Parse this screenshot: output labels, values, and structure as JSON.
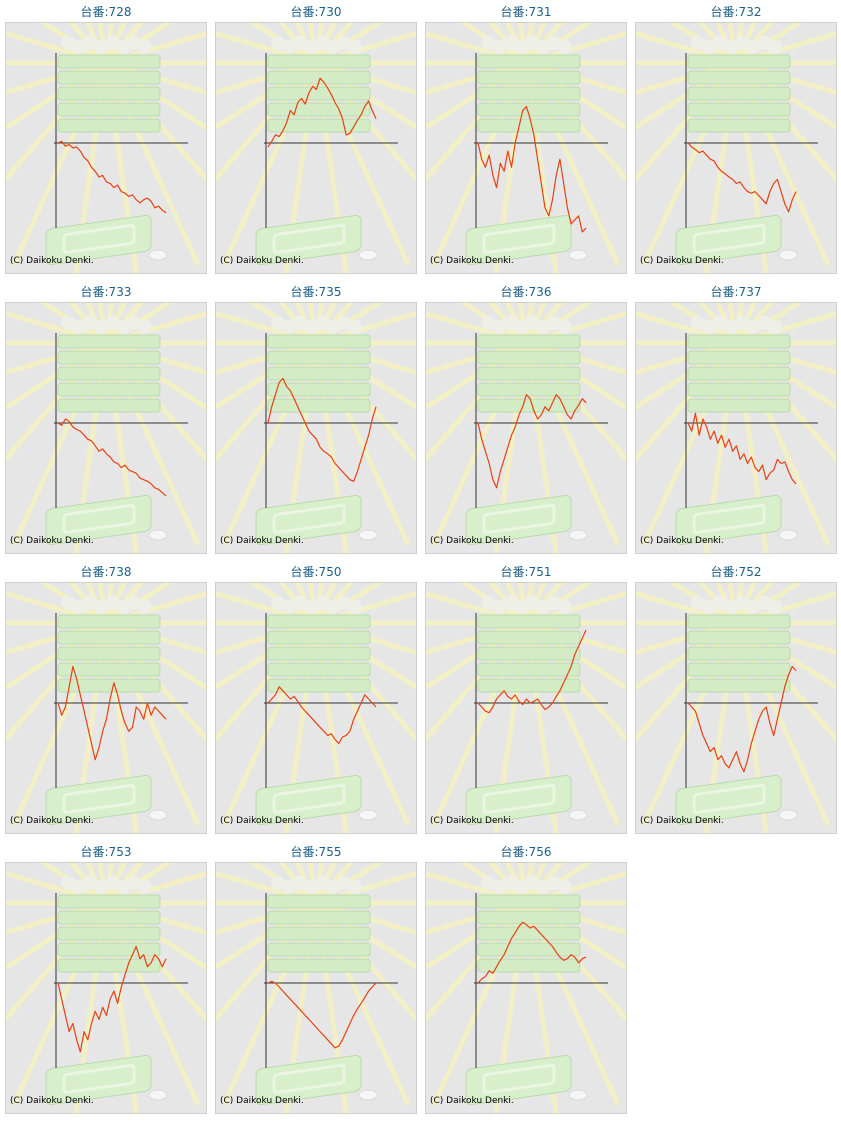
{
  "copyright": "(C) Daikoku Denki.",
  "line_color": "#e8410f",
  "axis_color": "#333333",
  "chart_data": [
    {
      "type": "line",
      "title": "台番:728",
      "ylim": [
        -1,
        1
      ],
      "x": [
        0,
        1,
        2,
        3,
        4,
        5,
        6,
        7,
        8,
        9,
        10,
        11,
        12,
        13,
        14,
        15,
        16,
        17,
        18,
        19,
        20,
        21,
        22,
        23,
        24,
        25,
        26,
        27,
        28,
        29
      ],
      "values": [
        0,
        0.02,
        -0.04,
        -0.02,
        -0.06,
        -0.05,
        -0.1,
        -0.18,
        -0.22,
        -0.3,
        -0.35,
        -0.42,
        -0.4,
        -0.48,
        -0.5,
        -0.55,
        -0.52,
        -0.6,
        -0.62,
        -0.66,
        -0.64,
        -0.7,
        -0.74,
        -0.7,
        -0.68,
        -0.72,
        -0.8,
        -0.78,
        -0.83,
        -0.86
      ]
    },
    {
      "type": "line",
      "title": "台番:730",
      "ylim": [
        -1,
        1
      ],
      "x": [
        0,
        1,
        2,
        3,
        4,
        5,
        6,
        7,
        8,
        9,
        10,
        11,
        12,
        13,
        14,
        15,
        16,
        17,
        18,
        19,
        20,
        21,
        22,
        23,
        24,
        25,
        26,
        27,
        28,
        29
      ],
      "values": [
        -0.05,
        0.02,
        0.1,
        0.08,
        0.15,
        0.25,
        0.4,
        0.35,
        0.5,
        0.55,
        0.48,
        0.62,
        0.7,
        0.66,
        0.8,
        0.75,
        0.68,
        0.6,
        0.5,
        0.42,
        0.3,
        0.1,
        0.12,
        0.2,
        0.28,
        0.35,
        0.45,
        0.52,
        0.4,
        0.3
      ]
    },
    {
      "type": "line",
      "title": "台番:731",
      "ylim": [
        -1,
        1
      ],
      "x": [
        0,
        1,
        2,
        3,
        4,
        5,
        6,
        7,
        8,
        9,
        10,
        11,
        12,
        13,
        14,
        15,
        16,
        17,
        18,
        19,
        20,
        21,
        22,
        23,
        24,
        25,
        26,
        27,
        28,
        29
      ],
      "values": [
        0,
        -0.2,
        -0.3,
        -0.15,
        -0.4,
        -0.55,
        -0.25,
        -0.35,
        -0.1,
        -0.3,
        0.0,
        0.2,
        0.4,
        0.45,
        0.3,
        0.1,
        -0.2,
        -0.5,
        -0.8,
        -0.9,
        -0.7,
        -0.4,
        -0.2,
        -0.5,
        -0.8,
        -1.0,
        -0.95,
        -0.9,
        -1.1,
        -1.05
      ]
    },
    {
      "type": "line",
      "title": "台番:732",
      "ylim": [
        -1,
        1
      ],
      "x": [
        0,
        1,
        2,
        3,
        4,
        5,
        6,
        7,
        8,
        9,
        10,
        11,
        12,
        13,
        14,
        15,
        16,
        17,
        18,
        19,
        20,
        21,
        22,
        23,
        24,
        25,
        26,
        27,
        28,
        29
      ],
      "values": [
        0,
        -0.05,
        -0.08,
        -0.12,
        -0.1,
        -0.15,
        -0.2,
        -0.22,
        -0.3,
        -0.35,
        -0.38,
        -0.42,
        -0.45,
        -0.5,
        -0.48,
        -0.55,
        -0.6,
        -0.62,
        -0.6,
        -0.65,
        -0.7,
        -0.75,
        -0.6,
        -0.5,
        -0.45,
        -0.6,
        -0.75,
        -0.85,
        -0.7,
        -0.6
      ]
    },
    {
      "type": "line",
      "title": "台番:733",
      "ylim": [
        -1,
        1
      ],
      "x": [
        0,
        1,
        2,
        3,
        4,
        5,
        6,
        7,
        8,
        9,
        10,
        11,
        12,
        13,
        14,
        15,
        16,
        17,
        18,
        19,
        20,
        21,
        22,
        23,
        24,
        25,
        26,
        27,
        28,
        29
      ],
      "values": [
        0,
        -0.03,
        0.05,
        0.02,
        -0.05,
        -0.08,
        -0.1,
        -0.15,
        -0.2,
        -0.22,
        -0.28,
        -0.35,
        -0.32,
        -0.38,
        -0.42,
        -0.48,
        -0.5,
        -0.55,
        -0.52,
        -0.58,
        -0.6,
        -0.62,
        -0.68,
        -0.7,
        -0.72,
        -0.75,
        -0.8,
        -0.82,
        -0.86,
        -0.9
      ]
    },
    {
      "type": "line",
      "title": "台番:735",
      "ylim": [
        -1,
        1
      ],
      "x": [
        0,
        1,
        2,
        3,
        4,
        5,
        6,
        7,
        8,
        9,
        10,
        11,
        12,
        13,
        14,
        15,
        16,
        17,
        18,
        19,
        20,
        21,
        22,
        23,
        24,
        25,
        26,
        27,
        28,
        29
      ],
      "values": [
        0,
        0.2,
        0.35,
        0.5,
        0.55,
        0.45,
        0.4,
        0.3,
        0.2,
        0.1,
        0.0,
        -0.1,
        -0.15,
        -0.2,
        -0.3,
        -0.35,
        -0.38,
        -0.42,
        -0.5,
        -0.55,
        -0.6,
        -0.65,
        -0.7,
        -0.72,
        -0.6,
        -0.45,
        -0.3,
        -0.15,
        0.05,
        0.2
      ]
    },
    {
      "type": "line",
      "title": "台番:736",
      "ylim": [
        -1,
        1
      ],
      "x": [
        0,
        1,
        2,
        3,
        4,
        5,
        6,
        7,
        8,
        9,
        10,
        11,
        12,
        13,
        14,
        15,
        16,
        17,
        18,
        19,
        20,
        21,
        22,
        23,
        24,
        25,
        26,
        27,
        28,
        29
      ],
      "values": [
        0,
        -0.2,
        -0.35,
        -0.5,
        -0.7,
        -0.8,
        -0.6,
        -0.45,
        -0.3,
        -0.15,
        -0.05,
        0.1,
        0.2,
        0.35,
        0.3,
        0.15,
        0.05,
        0.1,
        0.2,
        0.15,
        0.25,
        0.35,
        0.3,
        0.2,
        0.1,
        0.05,
        0.15,
        0.22,
        0.3,
        0.25
      ]
    },
    {
      "type": "line",
      "title": "台番:737",
      "ylim": [
        -1,
        1
      ],
      "x": [
        0,
        1,
        2,
        3,
        4,
        5,
        6,
        7,
        8,
        9,
        10,
        11,
        12,
        13,
        14,
        15,
        16,
        17,
        18,
        19,
        20,
        21,
        22,
        23,
        24,
        25,
        26,
        27,
        28,
        29
      ],
      "values": [
        0,
        -0.1,
        0.12,
        -0.15,
        0.05,
        -0.05,
        -0.2,
        -0.1,
        -0.25,
        -0.15,
        -0.3,
        -0.2,
        -0.35,
        -0.28,
        -0.45,
        -0.38,
        -0.5,
        -0.42,
        -0.55,
        -0.6,
        -0.52,
        -0.7,
        -0.62,
        -0.58,
        -0.45,
        -0.5,
        -0.48,
        -0.6,
        -0.7,
        -0.75
      ]
    },
    {
      "type": "line",
      "title": "台番:738",
      "ylim": [
        -1,
        1
      ],
      "x": [
        0,
        1,
        2,
        3,
        4,
        5,
        6,
        7,
        8,
        9,
        10,
        11,
        12,
        13,
        14,
        15,
        16,
        17,
        18,
        19,
        20,
        21,
        22,
        23,
        24,
        25,
        26,
        27,
        28,
        29
      ],
      "values": [
        0,
        -0.15,
        -0.05,
        0.2,
        0.45,
        0.3,
        0.1,
        -0.1,
        -0.3,
        -0.5,
        -0.7,
        -0.55,
        -0.35,
        -0.2,
        0.05,
        0.25,
        0.1,
        -0.1,
        -0.25,
        -0.35,
        -0.3,
        -0.05,
        -0.1,
        -0.2,
        0.0,
        -0.15,
        -0.05,
        -0.1,
        -0.15,
        -0.2
      ]
    },
    {
      "type": "line",
      "title": "台番:750",
      "ylim": [
        -1,
        1
      ],
      "x": [
        0,
        1,
        2,
        3,
        4,
        5,
        6,
        7,
        8,
        9,
        10,
        11,
        12,
        13,
        14,
        15,
        16,
        17,
        18,
        19,
        20,
        21,
        22,
        23,
        24,
        25,
        26,
        27,
        28,
        29
      ],
      "values": [
        0,
        0.05,
        0.1,
        0.2,
        0.15,
        0.1,
        0.05,
        0.08,
        0.02,
        -0.05,
        -0.1,
        -0.15,
        -0.2,
        -0.25,
        -0.3,
        -0.35,
        -0.4,
        -0.38,
        -0.45,
        -0.5,
        -0.42,
        -0.4,
        -0.35,
        -0.2,
        -0.1,
        0.0,
        0.1,
        0.05,
        0.0,
        -0.05
      ]
    },
    {
      "type": "line",
      "title": "台番:751",
      "ylim": [
        -1,
        1
      ],
      "x": [
        0,
        1,
        2,
        3,
        4,
        5,
        6,
        7,
        8,
        9,
        10,
        11,
        12,
        13,
        14,
        15,
        16,
        17,
        18,
        19,
        20,
        21,
        22,
        23,
        24,
        25,
        26,
        27,
        28,
        29
      ],
      "values": [
        0,
        -0.05,
        -0.1,
        -0.12,
        -0.05,
        0.05,
        0.1,
        0.15,
        0.08,
        0.05,
        0.1,
        0.02,
        -0.02,
        0.05,
        0.0,
        0.02,
        0.05,
        -0.02,
        -0.08,
        -0.05,
        0.0,
        0.08,
        0.15,
        0.25,
        0.35,
        0.45,
        0.6,
        0.7,
        0.8,
        0.9
      ]
    },
    {
      "type": "line",
      "title": "台番:752",
      "ylim": [
        -1,
        1
      ],
      "x": [
        0,
        1,
        2,
        3,
        4,
        5,
        6,
        7,
        8,
        9,
        10,
        11,
        12,
        13,
        14,
        15,
        16,
        17,
        18,
        19,
        20,
        21,
        22,
        23,
        24,
        25,
        26,
        27,
        28,
        29
      ],
      "values": [
        0,
        -0.05,
        -0.1,
        -0.25,
        -0.4,
        -0.5,
        -0.6,
        -0.55,
        -0.7,
        -0.65,
        -0.75,
        -0.8,
        -0.7,
        -0.6,
        -0.75,
        -0.85,
        -0.7,
        -0.5,
        -0.35,
        -0.2,
        -0.1,
        -0.05,
        -0.25,
        -0.4,
        -0.2,
        0.0,
        0.2,
        0.35,
        0.45,
        0.4
      ]
    },
    {
      "type": "line",
      "title": "台番:753",
      "ylim": [
        -1,
        1
      ],
      "x": [
        0,
        1,
        2,
        3,
        4,
        5,
        6,
        7,
        8,
        9,
        10,
        11,
        12,
        13,
        14,
        15,
        16,
        17,
        18,
        19,
        20,
        21,
        22,
        23,
        24,
        25,
        26,
        27,
        28,
        29
      ],
      "values": [
        0,
        -0.2,
        -0.4,
        -0.6,
        -0.5,
        -0.7,
        -0.85,
        -0.6,
        -0.7,
        -0.5,
        -0.35,
        -0.45,
        -0.3,
        -0.4,
        -0.2,
        -0.1,
        -0.25,
        -0.05,
        0.1,
        0.25,
        0.35,
        0.45,
        0.3,
        0.35,
        0.2,
        0.25,
        0.35,
        0.3,
        0.2,
        0.3
      ]
    },
    {
      "type": "line",
      "title": "台番:755",
      "ylim": [
        -1,
        1
      ],
      "x": [
        0,
        1,
        2,
        3,
        4,
        5,
        6,
        7,
        8,
        9,
        10,
        11,
        12,
        13,
        14,
        15,
        16,
        17,
        18,
        19,
        20,
        21,
        22,
        23,
        24,
        25,
        26,
        27,
        28,
        29
      ],
      "values": [
        0,
        0.02,
        0.0,
        -0.05,
        -0.1,
        -0.15,
        -0.2,
        -0.25,
        -0.3,
        -0.35,
        -0.4,
        -0.45,
        -0.5,
        -0.55,
        -0.6,
        -0.65,
        -0.7,
        -0.75,
        -0.8,
        -0.78,
        -0.7,
        -0.6,
        -0.5,
        -0.4,
        -0.32,
        -0.25,
        -0.18,
        -0.1,
        -0.05,
        0.0
      ]
    },
    {
      "type": "line",
      "title": "台番:756",
      "ylim": [
        -1,
        1
      ],
      "x": [
        0,
        1,
        2,
        3,
        4,
        5,
        6,
        7,
        8,
        9,
        10,
        11,
        12,
        13,
        14,
        15,
        16,
        17,
        18,
        19,
        20,
        21,
        22,
        23,
        24,
        25,
        26,
        27,
        28,
        29
      ],
      "values": [
        0,
        0.05,
        0.08,
        0.15,
        0.12,
        0.2,
        0.28,
        0.35,
        0.45,
        0.55,
        0.62,
        0.7,
        0.75,
        0.72,
        0.68,
        0.7,
        0.65,
        0.6,
        0.55,
        0.5,
        0.45,
        0.38,
        0.32,
        0.28,
        0.3,
        0.35,
        0.32,
        0.25,
        0.3,
        0.32
      ]
    }
  ]
}
